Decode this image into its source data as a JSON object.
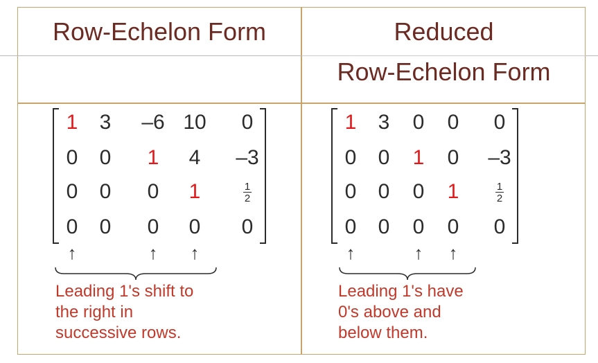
{
  "headers": {
    "left": "Row-Echelon Form",
    "right_line1": "Reduced",
    "right_line2": "Row-Echelon Form"
  },
  "left_matrix": {
    "rows": [
      [
        "1",
        "3",
        "–6",
        "10",
        "0"
      ],
      [
        "0",
        "0",
        "1",
        "4",
        "–3"
      ],
      [
        "0",
        "0",
        "0",
        "1",
        "frac"
      ],
      [
        "0",
        "0",
        "0",
        "0",
        "0"
      ]
    ],
    "fraction": {
      "numerator": "1",
      "denominator": "2"
    },
    "leading_ones": [
      [
        0,
        0
      ],
      [
        1,
        2
      ],
      [
        2,
        3
      ]
    ],
    "arrows": [
      "↑",
      "↑",
      "↑"
    ]
  },
  "right_matrix": {
    "rows": [
      [
        "1",
        "3",
        "0",
        "0",
        "0"
      ],
      [
        "0",
        "0",
        "1",
        "0",
        "–3"
      ],
      [
        "0",
        "0",
        "0",
        "1",
        "frac"
      ],
      [
        "0",
        "0",
        "0",
        "0",
        "0"
      ]
    ],
    "fraction": {
      "numerator": "1",
      "denominator": "2"
    },
    "leading_ones": [
      [
        0,
        0
      ],
      [
        1,
        2
      ],
      [
        2,
        3
      ]
    ],
    "arrows": [
      "↑",
      "↑",
      "↑"
    ]
  },
  "notes": {
    "left": [
      "Leading 1's shift to",
      "the right in",
      "successive rows."
    ],
    "right": [
      "Leading 1's have",
      "0's above and",
      "below them."
    ]
  },
  "colors": {
    "header": "#6b2a22",
    "leading_one": "#e0191b",
    "note": "#c0392b",
    "border": "#c9a46a"
  }
}
